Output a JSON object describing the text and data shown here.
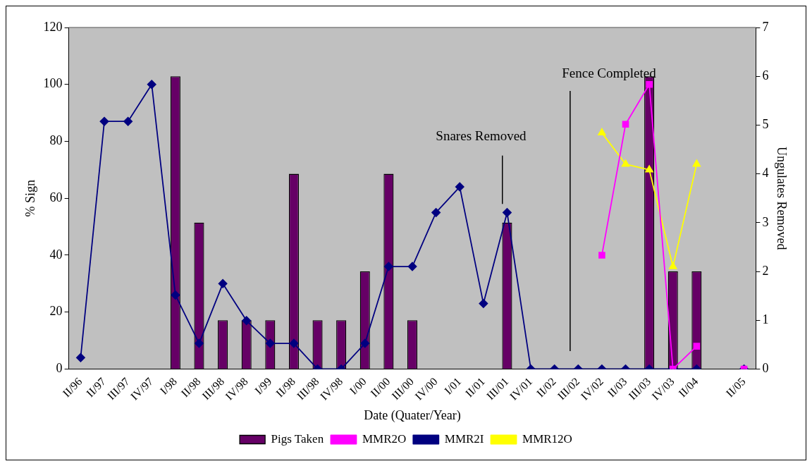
{
  "chart_data": {
    "type": "bar",
    "categories": [
      "II/96",
      "II/97",
      "III/97",
      "IV/97",
      "I/98",
      "II/98",
      "III/98",
      "IV/98",
      "I/99",
      "II/98",
      "III/98",
      "IV/98",
      "I/00",
      "II/00",
      "III/00",
      "IV/00",
      "I/01",
      "II/01",
      "III/01",
      "IV/01",
      "II/02",
      "III/02",
      "IV/02",
      "II/03",
      "III/03",
      "IV/03",
      "II/04",
      null,
      "II/05"
    ],
    "series": [
      {
        "name": "Pigs Taken",
        "axis": "y2",
        "color": "#660066",
        "values": [
          null,
          null,
          null,
          null,
          6,
          3,
          1,
          1,
          1,
          4,
          1,
          1,
          2,
          4,
          1,
          null,
          null,
          null,
          3,
          null,
          null,
          null,
          null,
          null,
          6,
          2,
          2,
          null,
          null
        ]
      },
      {
        "name": "MMR2O",
        "type": "line",
        "marker": "square",
        "color": "#ff00ff",
        "values": [
          null,
          null,
          null,
          null,
          null,
          null,
          null,
          null,
          null,
          null,
          null,
          null,
          null,
          null,
          null,
          null,
          null,
          null,
          null,
          null,
          null,
          null,
          40,
          86,
          100,
          0,
          8,
          null,
          0
        ]
      },
      {
        "name": "MMR2I",
        "type": "line",
        "marker": "diamond",
        "color": "#000080",
        "values": [
          4,
          87,
          87,
          100,
          26,
          9,
          30,
          17,
          9,
          9,
          0,
          0,
          9,
          36,
          36,
          55,
          64,
          23,
          55,
          0,
          0,
          0,
          0,
          0,
          0,
          0,
          0,
          null,
          0
        ]
      },
      {
        "name": "MMR12O",
        "type": "line",
        "marker": "triangle",
        "color": "#ffff00",
        "values": [
          null,
          null,
          null,
          null,
          null,
          null,
          null,
          null,
          null,
          null,
          null,
          null,
          null,
          null,
          null,
          null,
          null,
          null,
          null,
          null,
          null,
          null,
          83,
          72,
          70,
          36,
          72,
          null,
          null
        ]
      }
    ],
    "xlabel": "Date (Quater/Year)",
    "ylabel": "% Sign",
    "y2label": "Ungulates Removed",
    "ylim": [
      0,
      120
    ],
    "yticks": [
      0,
      20,
      40,
      60,
      80,
      100,
      120
    ],
    "y2lim": [
      0,
      7
    ],
    "y2ticks": [
      0,
      1,
      2,
      3,
      4,
      5,
      6,
      7
    ],
    "annotations": [
      "Snares Removed",
      "Fence Completed"
    ],
    "grid": false,
    "legend": "bottom"
  }
}
